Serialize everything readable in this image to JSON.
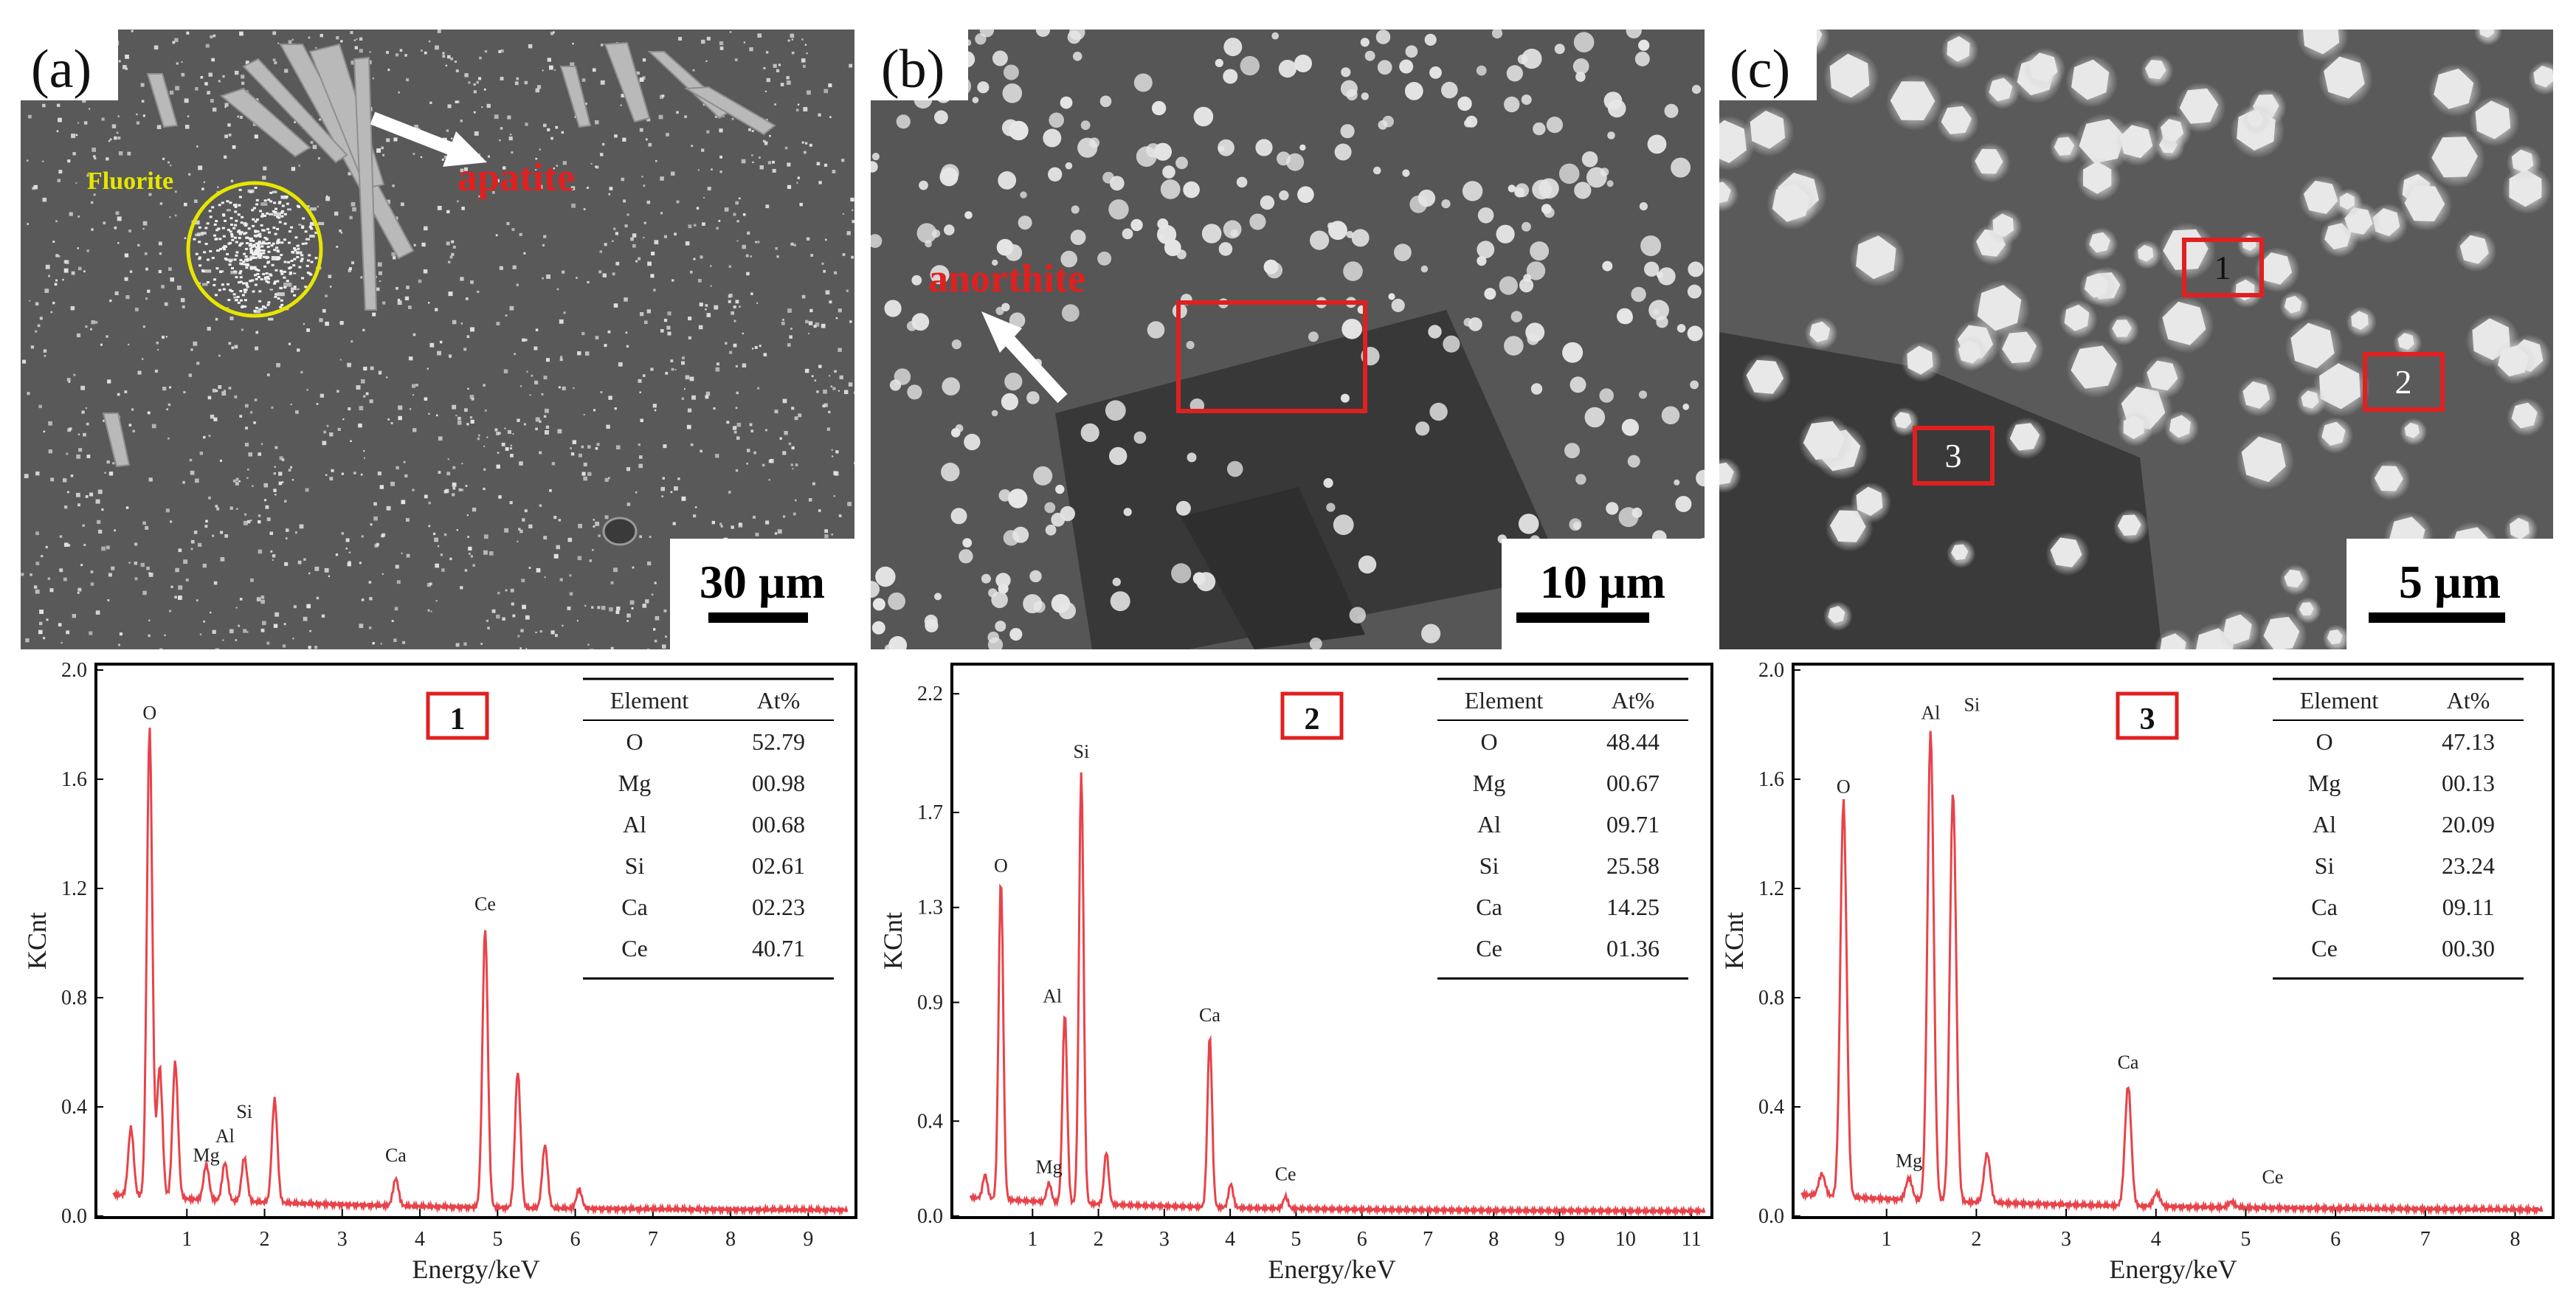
{
  "micrographs": [
    {
      "panel_label": "(a)",
      "scale_bar": "30 µm",
      "annotations": [
        {
          "text": "Fluorite",
          "color": "#e6e600"
        },
        {
          "text": "apatite",
          "color": "#e02020"
        }
      ]
    },
    {
      "panel_label": "(b)",
      "scale_bar": "10 µm",
      "annotations": [
        {
          "text": "anorthite",
          "color": "#e02020"
        }
      ]
    },
    {
      "panel_label": "(c)",
      "scale_bar": "5 µm",
      "point_labels": [
        "1",
        "2",
        "3"
      ]
    }
  ],
  "colors": {
    "spectrum_line": "#e8434a",
    "marker_box": "#e02020",
    "sem_background": "#5c5c5c",
    "sem_particles": "#e8e8e8"
  },
  "chart_data": [
    {
      "type": "line",
      "point_label": "1",
      "xlabel": "Energy/keV",
      "ylabel": "KCnt",
      "xlim": [
        0,
        9.5
      ],
      "ylim": [
        0,
        2.0
      ],
      "xticks": [
        "1",
        "2",
        "3",
        "4",
        "5",
        "6",
        "7",
        "8",
        "9"
      ],
      "yticks": [
        "0.0",
        "0.4",
        "0.8",
        "1.2",
        "1.6",
        "2.0"
      ],
      "peaks": [
        {
          "x": 0.28,
          "y": 0.25
        },
        {
          "x": 0.52,
          "y": 1.72
        },
        {
          "x": 0.65,
          "y": 0.48
        },
        {
          "x": 0.85,
          "y": 0.5
        },
        {
          "x": 1.25,
          "y": 0.13
        },
        {
          "x": 1.49,
          "y": 0.14
        },
        {
          "x": 1.74,
          "y": 0.16
        },
        {
          "x": 2.13,
          "y": 0.38
        },
        {
          "x": 3.69,
          "y": 0.1
        },
        {
          "x": 4.84,
          "y": 1.02
        },
        {
          "x": 5.26,
          "y": 0.5
        },
        {
          "x": 5.61,
          "y": 0.23
        },
        {
          "x": 6.05,
          "y": 0.07
        }
      ],
      "peak_labels": [
        {
          "text": "O",
          "x": 0.52,
          "y": 1.82
        },
        {
          "text": "Mg",
          "x": 1.25,
          "y": 0.2
        },
        {
          "text": "Al",
          "x": 1.49,
          "y": 0.27
        },
        {
          "text": "Si",
          "x": 1.74,
          "y": 0.36
        },
        {
          "text": "Ca",
          "x": 3.69,
          "y": 0.2
        },
        {
          "text": "Ce",
          "x": 4.84,
          "y": 1.12
        }
      ],
      "table": {
        "columns": [
          "Element",
          "At%"
        ],
        "rows": [
          [
            "O",
            "52.79"
          ],
          [
            "Mg",
            "00.98"
          ],
          [
            "Al",
            "00.68"
          ],
          [
            "Si",
            "02.61"
          ],
          [
            "Ca",
            "02.23"
          ],
          [
            "Ce",
            "40.71"
          ]
        ]
      }
    },
    {
      "type": "line",
      "point_label": "2",
      "xlabel": "Energy/keV",
      "ylabel": "KCnt",
      "xlim": [
        0,
        11.2
      ],
      "ylim": [
        0,
        2.3
      ],
      "xticks": [
        "1",
        "2",
        "3",
        "4",
        "5",
        "6",
        "7",
        "8",
        "9",
        "10",
        "11"
      ],
      "yticks": [
        "0.0",
        "0.4",
        "0.9",
        "1.3",
        "1.7",
        "2.2"
      ],
      "peaks": [
        {
          "x": 0.28,
          "y": 0.1
        },
        {
          "x": 0.52,
          "y": 1.35
        },
        {
          "x": 1.25,
          "y": 0.08
        },
        {
          "x": 1.49,
          "y": 0.8
        },
        {
          "x": 1.74,
          "y": 1.82
        },
        {
          "x": 2.12,
          "y": 0.22
        },
        {
          "x": 3.69,
          "y": 0.72
        },
        {
          "x": 4.01,
          "y": 0.1
        },
        {
          "x": 4.84,
          "y": 0.05
        }
      ],
      "peak_labels": [
        {
          "text": "O",
          "x": 0.52,
          "y": 1.45
        },
        {
          "text": "Mg",
          "x": 1.25,
          "y": 0.18
        },
        {
          "text": "Al",
          "x": 1.3,
          "y": 0.9
        },
        {
          "text": "Si",
          "x": 1.74,
          "y": 1.93
        },
        {
          "text": "Ca",
          "x": 3.69,
          "y": 0.82
        },
        {
          "text": "Ce",
          "x": 4.84,
          "y": 0.15
        }
      ],
      "table": {
        "columns": [
          "Element",
          "At%"
        ],
        "rows": [
          [
            "O",
            "48.44"
          ],
          [
            "Mg",
            "00.67"
          ],
          [
            "Al",
            "09.71"
          ],
          [
            "Si",
            "25.58"
          ],
          [
            "Ca",
            "14.25"
          ],
          [
            "Ce",
            "01.36"
          ]
        ]
      }
    },
    {
      "type": "line",
      "point_label": "3",
      "xlabel": "Energy/keV",
      "ylabel": "KCnt",
      "xlim": [
        0,
        8.3
      ],
      "ylim": [
        0,
        2.0
      ],
      "xticks": [
        "1",
        "2",
        "3",
        "4",
        "5",
        "6",
        "7",
        "8"
      ],
      "yticks": [
        "0.0",
        "0.4",
        "0.8",
        "1.2",
        "1.6",
        "2.0"
      ],
      "peaks": [
        {
          "x": 0.28,
          "y": 0.08
        },
        {
          "x": 0.52,
          "y": 1.45
        },
        {
          "x": 1.25,
          "y": 0.08
        },
        {
          "x": 1.49,
          "y": 1.72
        },
        {
          "x": 1.74,
          "y": 1.5
        },
        {
          "x": 2.12,
          "y": 0.18
        },
        {
          "x": 3.69,
          "y": 0.44
        },
        {
          "x": 4.01,
          "y": 0.05
        },
        {
          "x": 4.84,
          "y": 0.02
        }
      ],
      "peak_labels": [
        {
          "text": "O",
          "x": 0.52,
          "y": 1.55
        },
        {
          "text": "Mg",
          "x": 1.25,
          "y": 0.18
        },
        {
          "text": "Al",
          "x": 1.49,
          "y": 1.82
        },
        {
          "text": "Si",
          "x": 1.95,
          "y": 1.85
        },
        {
          "text": "Ca",
          "x": 3.69,
          "y": 0.54
        },
        {
          "text": "Ce",
          "x": 5.3,
          "y": 0.12
        }
      ],
      "table": {
        "columns": [
          "Element",
          "At%"
        ],
        "rows": [
          [
            "O",
            "47.13"
          ],
          [
            "Mg",
            "00.13"
          ],
          [
            "Al",
            "20.09"
          ],
          [
            "Si",
            "23.24"
          ],
          [
            "Ca",
            "09.11"
          ],
          [
            "Ce",
            "00.30"
          ]
        ]
      }
    }
  ]
}
